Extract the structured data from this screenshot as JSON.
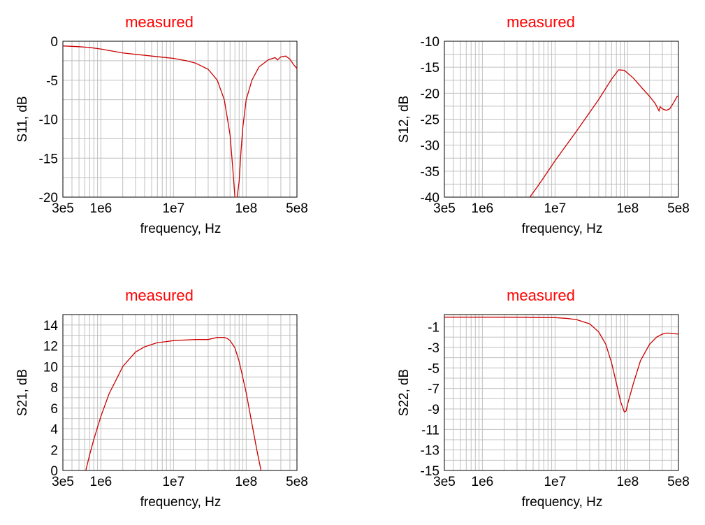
{
  "chart_data": [
    {
      "type": "line",
      "title": "measured",
      "xlabel": "frequency, Hz",
      "ylabel": "S11, dB",
      "xscale": "log",
      "xlim": [
        300000,
        500000000
      ],
      "ylim": [
        -20,
        0
      ],
      "xticks": [
        {
          "value": 300000,
          "label": "3e5"
        },
        {
          "value": 1000000,
          "label": "1e6"
        },
        {
          "value": 10000000,
          "label": "1e7"
        },
        {
          "value": 100000000,
          "label": "1e8"
        },
        {
          "value": 500000000,
          "label": "5e8"
        }
      ],
      "yticks": [
        0,
        -5,
        -10,
        -15,
        -20
      ],
      "grid": true,
      "series": [
        {
          "color": "#cc0000",
          "x": [
            300000,
            500000,
            700000,
            1000000,
            2000000,
            5000000,
            8000000,
            10000000,
            15000000,
            20000000,
            30000000,
            40000000,
            50000000,
            60000000,
            65000000,
            70000000,
            75000000,
            80000000,
            85000000,
            90000000,
            100000000,
            120000000,
            150000000,
            200000000,
            250000000,
            270000000,
            300000000,
            350000000,
            400000000,
            450000000,
            500000000
          ],
          "y": [
            -0.6,
            -0.7,
            -0.8,
            -1.0,
            -1.5,
            -1.9,
            -2.1,
            -2.2,
            -2.5,
            -2.8,
            -3.6,
            -5.0,
            -7.5,
            -12.0,
            -16.0,
            -20.0,
            -20.0,
            -18.0,
            -14.0,
            -11.0,
            -7.5,
            -5.0,
            -3.3,
            -2.4,
            -2.1,
            -2.4,
            -2.0,
            -1.9,
            -2.3,
            -3.0,
            -3.5
          ]
        }
      ]
    },
    {
      "type": "line",
      "title": "measured",
      "xlabel": "frequency, Hz",
      "ylabel": "S12, dB",
      "xscale": "log",
      "xlim": [
        300000,
        500000000
      ],
      "ylim": [
        -40,
        -10
      ],
      "xticks": [
        {
          "value": 300000,
          "label": "3e5"
        },
        {
          "value": 1000000,
          "label": "1e6"
        },
        {
          "value": 10000000,
          "label": "1e7"
        },
        {
          "value": 100000000,
          "label": "1e8"
        },
        {
          "value": 500000000,
          "label": "5e8"
        }
      ],
      "yticks": [
        -10,
        -15,
        -20,
        -25,
        -30,
        -35,
        -40
      ],
      "grid": true,
      "series": [
        {
          "color": "#cc0000",
          "x": [
            4500000,
            6000000,
            10000000,
            20000000,
            40000000,
            60000000,
            75000000,
            90000000,
            120000000,
            160000000,
            200000000,
            240000000,
            270000000,
            280000000,
            300000000,
            340000000,
            380000000,
            430000000,
            480000000,
            500000000
          ],
          "y": [
            -40.0,
            -37.6,
            -33.0,
            -27.2,
            -21.2,
            -17.3,
            -15.5,
            -15.6,
            -17.1,
            -19.1,
            -20.6,
            -22.0,
            -23.4,
            -22.6,
            -23.0,
            -23.3,
            -23.0,
            -21.8,
            -20.6,
            -20.5
          ]
        }
      ]
    },
    {
      "type": "line",
      "title": "measured",
      "xlabel": "frequency, Hz",
      "ylabel": "S21, dB",
      "xscale": "log",
      "xlim": [
        300000,
        500000000
      ],
      "ylim": [
        0,
        15
      ],
      "xticks": [
        {
          "value": 300000,
          "label": "3e5"
        },
        {
          "value": 1000000,
          "label": "1e6"
        },
        {
          "value": 10000000,
          "label": "1e7"
        },
        {
          "value": 100000000,
          "label": "1e8"
        },
        {
          "value": 500000000,
          "label": "5e8"
        }
      ],
      "yticks": [
        0,
        2,
        4,
        6,
        8,
        10,
        12,
        14
      ],
      "grid": true,
      "series": [
        {
          "color": "#cc0000",
          "x": [
            620000,
            700000,
            800000,
            1000000,
            1300000,
            1700000,
            2000000,
            3000000,
            4000000,
            6000000,
            8000000,
            10000000,
            20000000,
            30000000,
            40000000,
            50000000,
            55000000,
            60000000,
            70000000,
            80000000,
            100000000,
            120000000,
            140000000,
            160000000
          ],
          "y": [
            0,
            1.5,
            3.0,
            5.2,
            7.4,
            9.0,
            10.0,
            11.4,
            11.9,
            12.3,
            12.4,
            12.5,
            12.6,
            12.6,
            12.8,
            12.8,
            12.7,
            12.5,
            11.8,
            10.5,
            7.5,
            4.5,
            2.0,
            0
          ]
        }
      ]
    },
    {
      "type": "line",
      "title": "measured",
      "xlabel": "frequency, Hz",
      "ylabel": "S22, dB",
      "xscale": "log",
      "xlim": [
        300000,
        500000000
      ],
      "ylim": [
        -15,
        0.2
      ],
      "xticks": [
        {
          "value": 300000,
          "label": "3e5"
        },
        {
          "value": 1000000,
          "label": "1e6"
        },
        {
          "value": 10000000,
          "label": "1e7"
        },
        {
          "value": 100000000,
          "label": "1e8"
        },
        {
          "value": 500000000,
          "label": "5e8"
        }
      ],
      "yticks": [
        -1,
        -3,
        -5,
        -7,
        -9,
        -11,
        -13,
        -15
      ],
      "grid": true,
      "series": [
        {
          "color": "#cc0000",
          "x": [
            300000,
            1000000,
            3000000,
            10000000,
            15000000,
            20000000,
            30000000,
            40000000,
            50000000,
            60000000,
            70000000,
            80000000,
            90000000,
            95000000,
            100000000,
            120000000,
            150000000,
            200000000,
            250000000,
            300000000,
            350000000,
            400000000,
            500000000
          ],
          "y": [
            -0.05,
            -0.05,
            -0.06,
            -0.1,
            -0.18,
            -0.3,
            -0.7,
            -1.5,
            -2.7,
            -4.5,
            -6.5,
            -8.3,
            -9.3,
            -9.2,
            -8.5,
            -6.5,
            -4.3,
            -2.7,
            -2.0,
            -1.7,
            -1.6,
            -1.65,
            -1.7
          ]
        }
      ]
    }
  ]
}
